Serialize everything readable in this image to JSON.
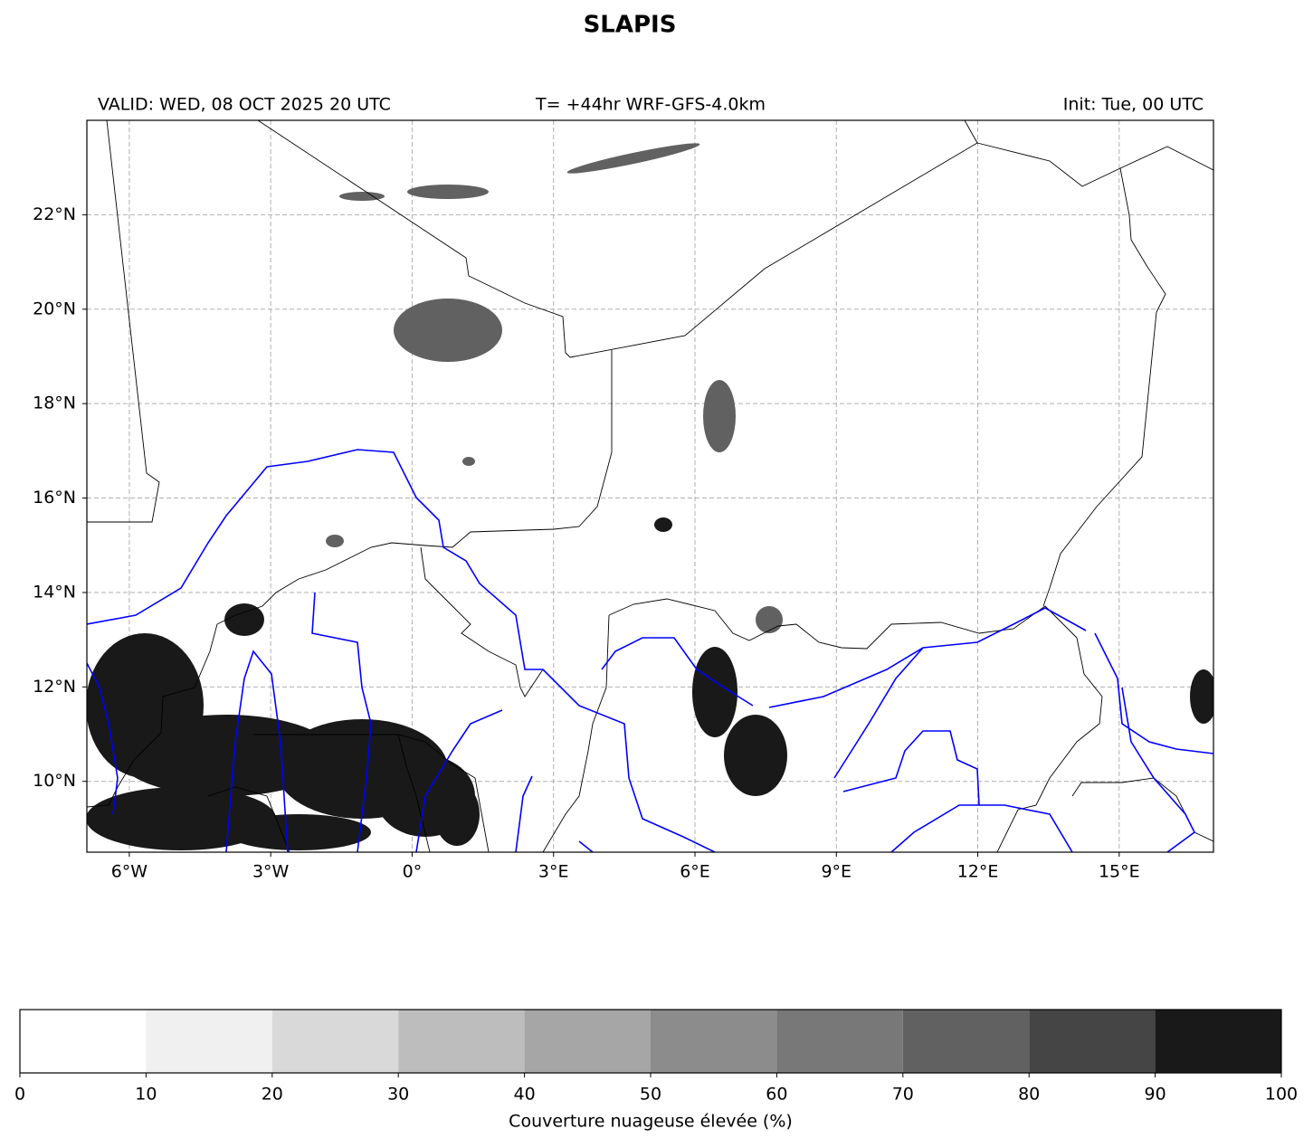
{
  "map": {
    "title": "SLAPIS",
    "valid": "VALID: WED, 08 OCT 2025 20 UTC",
    "forecast": "T= +44hr WRF-GFS-4.0km",
    "init": "Init: Tue, 00 UTC",
    "xlim": [
      -6.9,
      17
    ],
    "ylim": [
      8.5,
      24
    ],
    "xticks": [
      {
        "value": -6,
        "label": "6°W"
      },
      {
        "value": -3,
        "label": "3°W"
      },
      {
        "value": 0,
        "label": "0°"
      },
      {
        "value": 3,
        "label": "3°E"
      },
      {
        "value": 6,
        "label": "6°E"
      },
      {
        "value": 9,
        "label": "9°E"
      },
      {
        "value": 12,
        "label": "12°E"
      },
      {
        "value": 15,
        "label": "15°E"
      }
    ],
    "yticks": [
      {
        "value": 10,
        "label": "10°N"
      },
      {
        "value": 12,
        "label": "12°N"
      },
      {
        "value": 14,
        "label": "14°N"
      },
      {
        "value": 16,
        "label": "16°N"
      },
      {
        "value": 18,
        "label": "18°N"
      },
      {
        "value": 20,
        "label": "20°N"
      },
      {
        "value": 22,
        "label": "22°N"
      }
    ],
    "grid": true
  },
  "colorbar": {
    "label": "Couverture nuageuse élevée (%)",
    "lim": [
      0,
      100
    ],
    "ticks": [
      0,
      10,
      20,
      30,
      40,
      50,
      60,
      70,
      80,
      90,
      100
    ],
    "colors": [
      "#ffffff",
      "#f0f0f0",
      "#d9d9d9",
      "#bdbdbd",
      "#a6a6a6",
      "#8c8c8c",
      "#787878",
      "#616161",
      "#454545",
      "#191919"
    ]
  }
}
